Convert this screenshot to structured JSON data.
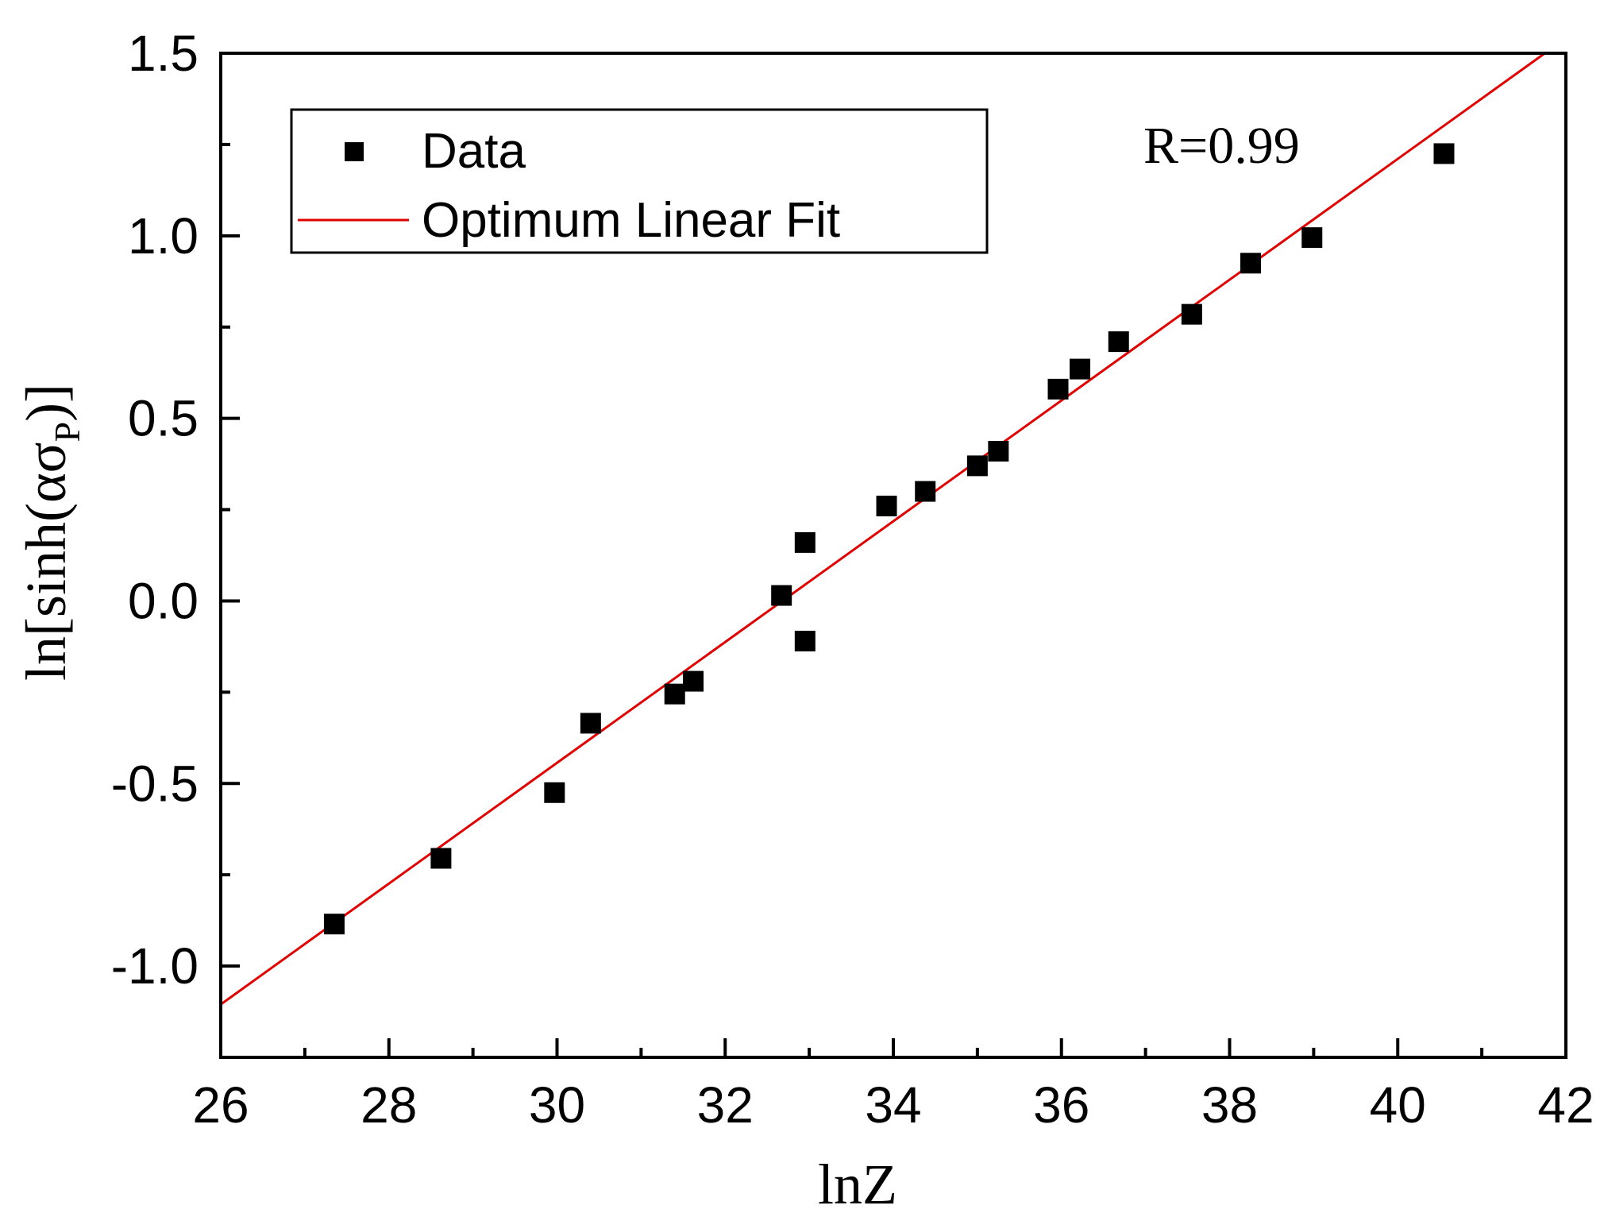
{
  "chart_data": {
    "type": "scatter",
    "xlabel": "lnZ",
    "ylabel": "ln[sinh(ασ",
    "ylabel_sub": "P",
    "ylabel_close": ")]",
    "xlim": [
      26,
      42
    ],
    "ylim": [
      -1.25,
      1.5
    ],
    "x_ticks": [
      "26",
      "28",
      "30",
      "32",
      "34",
      "36",
      "38",
      "40",
      "42"
    ],
    "x_tick_values": [
      26,
      28,
      30,
      32,
      34,
      36,
      38,
      40,
      42
    ],
    "x_minor_ticks": [
      27,
      29,
      31,
      33,
      35,
      37,
      39,
      41
    ],
    "y_ticks": [
      "-1.0",
      "-0.5",
      "0.0",
      "0.5",
      "1.0",
      "1.5"
    ],
    "y_tick_values": [
      -1.0,
      -0.5,
      0.0,
      0.5,
      1.0,
      1.5
    ],
    "y_minor_ticks": [
      -0.75,
      -0.25,
      0.25,
      0.75,
      1.25
    ],
    "grid": false,
    "legend_position": "top-left",
    "annotation": "R=0.99",
    "series": [
      {
        "name": "Data",
        "kind": "scatter",
        "marker": "square",
        "color": "#000000",
        "points": [
          [
            27.35,
            -0.885
          ],
          [
            28.62,
            -0.705
          ],
          [
            29.97,
            -0.525
          ],
          [
            30.4,
            -0.335
          ],
          [
            31.4,
            -0.255
          ],
          [
            31.62,
            -0.22
          ],
          [
            32.67,
            0.015
          ],
          [
            32.95,
            0.16
          ],
          [
            32.95,
            -0.11
          ],
          [
            33.92,
            0.26
          ],
          [
            34.38,
            0.3
          ],
          [
            35.0,
            0.37
          ],
          [
            35.25,
            0.41
          ],
          [
            35.96,
            0.58
          ],
          [
            36.22,
            0.635
          ],
          [
            36.68,
            0.71
          ],
          [
            37.55,
            0.785
          ],
          [
            38.25,
            0.925
          ],
          [
            38.98,
            0.995
          ],
          [
            40.55,
            1.225
          ]
        ]
      },
      {
        "name": "Optimum Linear Fit",
        "kind": "line",
        "color": "#e00000",
        "x": [
          26.0,
          41.75
        ],
        "y": [
          -1.105,
          1.5
        ]
      }
    ]
  }
}
